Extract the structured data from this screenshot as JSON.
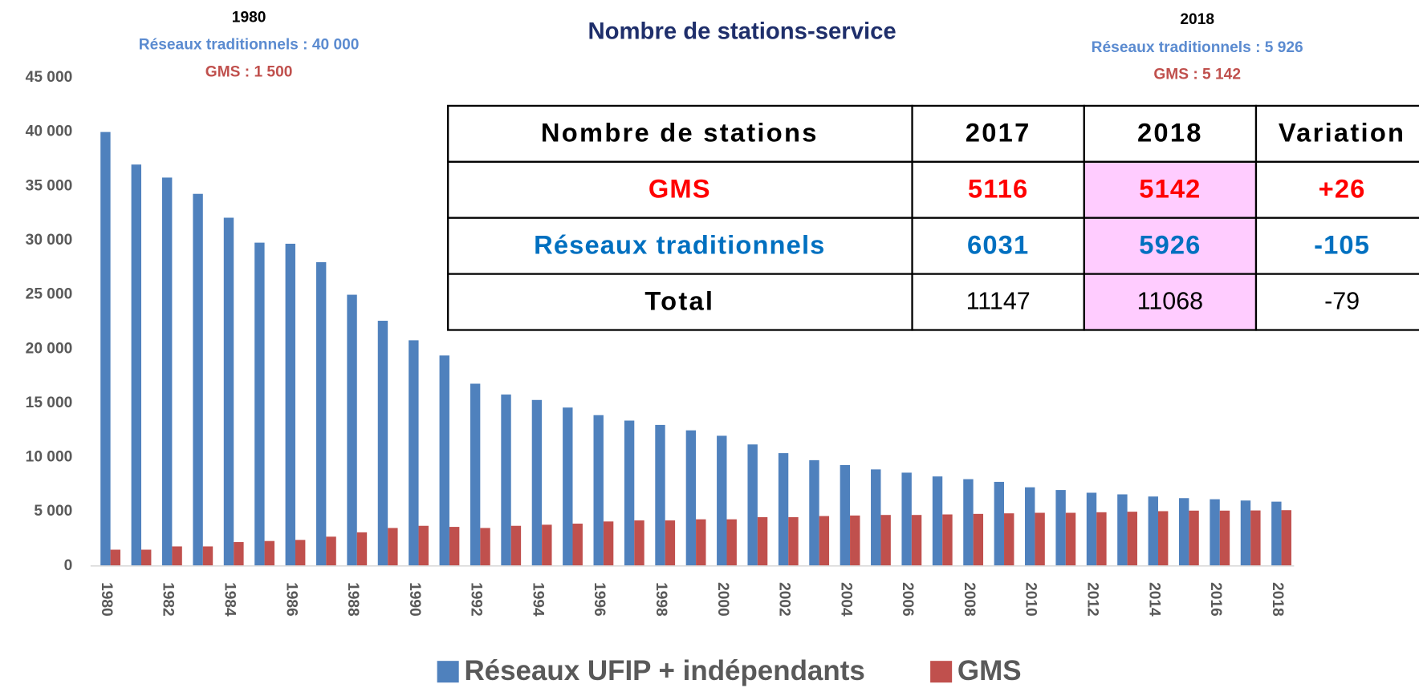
{
  "chart_data": {
    "type": "bar",
    "title": "Nombre de stations-service",
    "annotations": [
      "1980",
      "Réseaux traditionnels : 40 000",
      "GMS : 1 500",
      "2018",
      "Réseaux traditionnels : 5 926",
      "GMS : 5 142"
    ],
    "categories": [
      "1980",
      null,
      "1982",
      null,
      "1984",
      null,
      "1986",
      null,
      "1988",
      null,
      "1990",
      null,
      "1992",
      null,
      "1994",
      null,
      "1996",
      null,
      "1998",
      null,
      "2000",
      null,
      "2002",
      null,
      "2004",
      null,
      "2006",
      null,
      "2008",
      null,
      "2010",
      null,
      "2012",
      null,
      "2014",
      null,
      "2016",
      null,
      "2018"
    ],
    "series": [
      {
        "name": "Réseaux UFIP + indépendants",
        "color": "#4f81bd",
        "values": [
          40000,
          37000,
          35800,
          34300,
          32100,
          29800,
          29700,
          28000,
          25000,
          22600,
          20800,
          19400,
          16800,
          15800,
          15300,
          14600,
          13900,
          13400,
          13000,
          12500,
          12000,
          11200,
          10400,
          9750,
          9300,
          8900,
          8600,
          8250,
          8000,
          7750,
          7250,
          7000,
          6750,
          6600,
          6400,
          6250,
          6150,
          6031,
          5926
        ]
      },
      {
        "name": "GMS",
        "color": "#c0504d",
        "values": [
          1500,
          1500,
          1800,
          1800,
          2200,
          2300,
          2400,
          2700,
          3100,
          3500,
          3700,
          3600,
          3500,
          3700,
          3800,
          3900,
          4100,
          4200,
          4200,
          4300,
          4300,
          4500,
          4500,
          4600,
          4650,
          4700,
          4700,
          4750,
          4800,
          4850,
          4900,
          4900,
          4950,
          5000,
          5050,
          5100,
          5100,
          5116,
          5142
        ]
      }
    ],
    "ylim": [
      0,
      45000
    ],
    "yticks": [
      0,
      {
        "value": 5000,
        "label": "5 000"
      },
      {
        "value": 10000,
        "label": "10 000"
      },
      {
        "value": 15000,
        "label": "15 000"
      },
      {
        "value": 20000,
        "label": "20 000"
      },
      {
        "value": 25000,
        "label": "25 000"
      },
      {
        "value": 30000,
        "label": "30 000"
      },
      {
        "value": 35000,
        "label": "35 000"
      },
      {
        "value": 40000,
        "label": "40 000"
      },
      {
        "value": 45000,
        "label": "45 000"
      }
    ],
    "grid": false,
    "legend": "bottom"
  },
  "table": {
    "header": [
      "Nombre de stations",
      "2017",
      "2018",
      "Variation"
    ],
    "rows": [
      [
        "GMS",
        5116,
        5142,
        "+26"
      ],
      [
        "Réseaux traditionnels",
        6031,
        5926,
        -105
      ],
      [
        "Total",
        11147,
        11068,
        -79
      ]
    ]
  }
}
